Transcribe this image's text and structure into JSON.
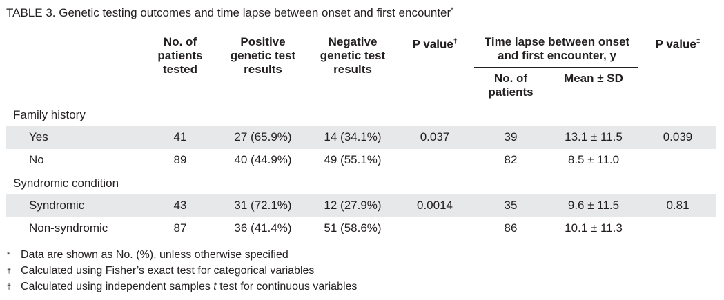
{
  "title": "TABLE 3.  Genetic testing outcomes and time lapse between onset and first encounter",
  "title_mark": "*",
  "headers": {
    "no_tested": "No. of patients tested",
    "positive": "Positive genetic test results",
    "negative": "Negative genetic test results",
    "p1": "P value",
    "p1_mark": "†",
    "time_lapse": "Time lapse between onset and first encounter, y",
    "time_no": "No. of patients",
    "time_mean": "Mean ± SD",
    "p2": "P value",
    "p2_mark": "‡"
  },
  "groups": [
    {
      "label": "Family history",
      "rows": [
        {
          "label": "Yes",
          "tested": "41",
          "positive": "27 (65.9%)",
          "negative": "14 (34.1%)",
          "p1": "0.037",
          "n": "39",
          "mean": "13.1 ± 11.5",
          "p2": "0.039"
        },
        {
          "label": "No",
          "tested": "89",
          "positive": "40 (44.9%)",
          "negative": "49 (55.1%)",
          "p1": "",
          "n": "82",
          "mean": "8.5 ± 11.0",
          "p2": ""
        }
      ]
    },
    {
      "label": "Syndromic condition",
      "rows": [
        {
          "label": "Syndromic",
          "tested": "43",
          "positive": "31 (72.1%)",
          "negative": "12 (27.9%)",
          "p1": "0.0014",
          "n": "35",
          "mean": "9.6 ± 11.5",
          "p2": "0.81"
        },
        {
          "label": "Non-syndromic",
          "tested": "87",
          "positive": "36 (41.4%)",
          "negative": "51 (58.6%)",
          "p1": "",
          "n": "86",
          "mean": "10.1 ± 11.3",
          "p2": ""
        }
      ]
    }
  ],
  "footnotes": [
    {
      "mark": "*",
      "text_before": "Data are shown as No. (%), unless otherwise specified",
      "italic": "",
      "text_after": ""
    },
    {
      "mark": "†",
      "text_before": "Calculated using Fisher’s exact test for categorical variables",
      "italic": "",
      "text_after": ""
    },
    {
      "mark": "‡",
      "text_before": "Calculated using independent samples ",
      "italic": "t",
      "text_after": " test for continuous variables"
    }
  ]
}
